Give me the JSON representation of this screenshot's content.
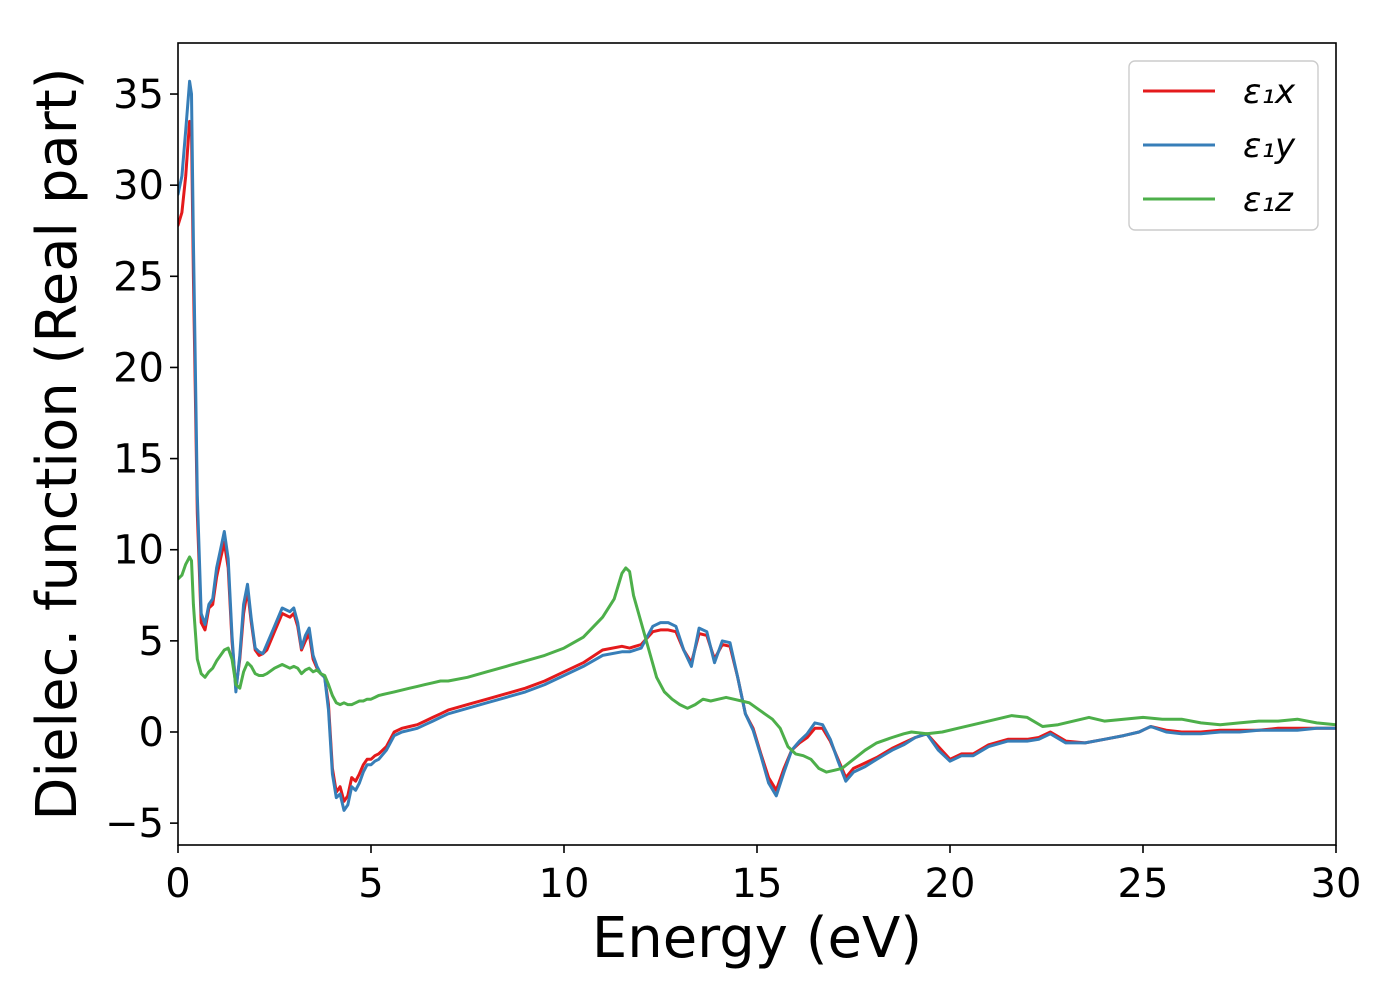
{
  "chart_data": {
    "type": "line",
    "title": "",
    "xlabel": "Energy (eV)",
    "ylabel": "Dielec. function (Real part)",
    "xlim": [
      0,
      30
    ],
    "ylim": [
      -6.2,
      37.8
    ],
    "xticks": [
      0,
      5,
      10,
      15,
      20,
      25,
      30
    ],
    "xtick_labels": [
      "0",
      "5",
      "10",
      "15",
      "20",
      "25",
      "30"
    ],
    "yticks": [
      -5,
      0,
      5,
      10,
      15,
      20,
      25,
      30,
      35
    ],
    "ytick_labels": [
      "−5",
      "0",
      "5",
      "10",
      "15",
      "20",
      "25",
      "30",
      "35"
    ],
    "grid": false,
    "legend_position": "top-right",
    "series": [
      {
        "name": "ε₁x",
        "color": "#e41a1c",
        "x": [
          0,
          0.1,
          0.2,
          0.3,
          0.35,
          0.4,
          0.5,
          0.6,
          0.7,
          0.8,
          0.9,
          1.0,
          1.1,
          1.2,
          1.3,
          1.4,
          1.5,
          1.6,
          1.7,
          1.8,
          1.9,
          2.0,
          2.1,
          2.2,
          2.3,
          2.5,
          2.7,
          2.9,
          3.0,
          3.1,
          3.2,
          3.3,
          3.4,
          3.5,
          3.6,
          3.7,
          3.8,
          3.9,
          4.0,
          4.1,
          4.2,
          4.3,
          4.4,
          4.5,
          4.6,
          4.7,
          4.8,
          4.9,
          5.0,
          5.1,
          5.2,
          5.4,
          5.6,
          5.8,
          6.0,
          6.2,
          6.4,
          6.6,
          6.8,
          7.0,
          7.5,
          8.0,
          8.5,
          9.0,
          9.5,
          10.0,
          10.5,
          11.0,
          11.5,
          11.7,
          12.0,
          12.3,
          12.5,
          12.7,
          12.9,
          13.1,
          13.3,
          13.5,
          13.7,
          13.9,
          14.1,
          14.3,
          14.5,
          14.7,
          14.9,
          15.1,
          15.3,
          15.5,
          15.7,
          15.9,
          16.1,
          16.3,
          16.5,
          16.7,
          16.9,
          17.1,
          17.3,
          17.5,
          17.8,
          18.1,
          18.5,
          18.8,
          19.1,
          19.4,
          19.7,
          20.0,
          20.3,
          20.6,
          21.0,
          21.5,
          22.0,
          22.3,
          22.6,
          23.0,
          23.5,
          24.0,
          24.5,
          24.9,
          25.2,
          25.6,
          26.0,
          26.5,
          27.0,
          27.5,
          28.0,
          28.5,
          29.0,
          29.5,
          30.0
        ],
        "y": [
          27.8,
          28.5,
          30.5,
          33.5,
          33.0,
          25.0,
          12.0,
          6.0,
          5.6,
          6.8,
          7.0,
          8.5,
          9.5,
          10.4,
          9.0,
          5.0,
          2.4,
          4.0,
          6.5,
          7.8,
          6.0,
          4.5,
          4.2,
          4.3,
          4.5,
          5.5,
          6.5,
          6.3,
          6.5,
          5.8,
          4.5,
          5.0,
          5.4,
          4.0,
          3.5,
          3.2,
          3.0,
          1.5,
          -2.0,
          -3.3,
          -3.0,
          -3.8,
          -3.5,
          -2.5,
          -2.7,
          -2.3,
          -1.8,
          -1.5,
          -1.5,
          -1.3,
          -1.2,
          -0.8,
          0.0,
          0.2,
          0.3,
          0.4,
          0.6,
          0.8,
          1.0,
          1.2,
          1.5,
          1.8,
          2.1,
          2.4,
          2.8,
          3.3,
          3.8,
          4.5,
          4.7,
          4.6,
          4.8,
          5.5,
          5.6,
          5.6,
          5.5,
          4.5,
          3.8,
          5.4,
          5.3,
          4.0,
          4.8,
          4.7,
          3.0,
          1.0,
          0.2,
          -1.2,
          -2.5,
          -3.2,
          -2.0,
          -1.0,
          -0.6,
          -0.3,
          0.2,
          0.2,
          -0.5,
          -1.5,
          -2.5,
          -2.0,
          -1.7,
          -1.4,
          -0.9,
          -0.6,
          -0.3,
          -0.1,
          -0.8,
          -1.5,
          -1.2,
          -1.2,
          -0.7,
          -0.4,
          -0.4,
          -0.3,
          0.0,
          -0.5,
          -0.6,
          -0.4,
          -0.2,
          0.0,
          0.3,
          0.1,
          0.0,
          0.0,
          0.1,
          0.1,
          0.1,
          0.2,
          0.2,
          0.2,
          0.2
        ]
      },
      {
        "name": "ε₁y",
        "color": "#377eb8",
        "x": [
          0,
          0.1,
          0.2,
          0.3,
          0.35,
          0.4,
          0.5,
          0.6,
          0.7,
          0.8,
          0.9,
          1.0,
          1.1,
          1.2,
          1.3,
          1.4,
          1.5,
          1.6,
          1.7,
          1.8,
          1.9,
          2.0,
          2.1,
          2.2,
          2.3,
          2.5,
          2.7,
          2.9,
          3.0,
          3.1,
          3.2,
          3.3,
          3.4,
          3.5,
          3.6,
          3.7,
          3.8,
          3.9,
          4.0,
          4.1,
          4.2,
          4.3,
          4.4,
          4.5,
          4.6,
          4.7,
          4.8,
          4.9,
          5.0,
          5.1,
          5.2,
          5.4,
          5.6,
          5.8,
          6.0,
          6.2,
          6.4,
          6.6,
          6.8,
          7.0,
          7.5,
          8.0,
          8.5,
          9.0,
          9.5,
          10.0,
          10.5,
          11.0,
          11.5,
          11.7,
          12.0,
          12.3,
          12.5,
          12.7,
          12.9,
          13.1,
          13.3,
          13.5,
          13.7,
          13.9,
          14.1,
          14.3,
          14.5,
          14.7,
          14.9,
          15.1,
          15.3,
          15.5,
          15.7,
          15.9,
          16.1,
          16.3,
          16.5,
          16.7,
          16.9,
          17.1,
          17.3,
          17.5,
          17.8,
          18.1,
          18.5,
          18.8,
          19.1,
          19.4,
          19.7,
          20.0,
          20.3,
          20.6,
          21.0,
          21.5,
          22.0,
          22.3,
          22.6,
          23.0,
          23.5,
          24.0,
          24.5,
          24.9,
          25.2,
          25.6,
          26.0,
          26.5,
          27.0,
          27.5,
          28.0,
          28.5,
          29.0,
          29.5,
          30.0
        ],
        "y": [
          29.5,
          30.5,
          33.0,
          35.7,
          35.0,
          27.0,
          13.0,
          6.5,
          5.9,
          7.0,
          7.3,
          9.0,
          10.0,
          11.0,
          9.5,
          5.3,
          2.2,
          4.2,
          7.0,
          8.1,
          6.2,
          4.6,
          4.4,
          4.3,
          4.8,
          5.8,
          6.8,
          6.6,
          6.8,
          6.0,
          4.6,
          5.3,
          5.7,
          4.2,
          3.6,
          3.2,
          3.0,
          1.2,
          -2.3,
          -3.6,
          -3.4,
          -4.3,
          -4.0,
          -3.0,
          -3.2,
          -2.8,
          -2.2,
          -1.8,
          -1.8,
          -1.6,
          -1.5,
          -1.0,
          -0.2,
          0.0,
          0.1,
          0.2,
          0.4,
          0.6,
          0.8,
          1.0,
          1.3,
          1.6,
          1.9,
          2.2,
          2.6,
          3.1,
          3.6,
          4.2,
          4.4,
          4.4,
          4.6,
          5.8,
          6.0,
          6.0,
          5.8,
          4.5,
          3.6,
          5.7,
          5.5,
          3.8,
          5.0,
          4.9,
          3.0,
          1.0,
          0.1,
          -1.3,
          -2.8,
          -3.5,
          -2.2,
          -1.0,
          -0.5,
          -0.1,
          0.5,
          0.4,
          -0.4,
          -1.6,
          -2.7,
          -2.2,
          -1.9,
          -1.5,
          -1.0,
          -0.7,
          -0.3,
          -0.1,
          -1.0,
          -1.6,
          -1.3,
          -1.3,
          -0.8,
          -0.5,
          -0.5,
          -0.4,
          -0.1,
          -0.6,
          -0.6,
          -0.4,
          -0.2,
          0.0,
          0.3,
          0.0,
          -0.1,
          -0.1,
          0.0,
          0.0,
          0.1,
          0.1,
          0.1,
          0.2,
          0.2
        ]
      },
      {
        "name": "ε₁z",
        "color": "#4daf4a",
        "x": [
          0,
          0.1,
          0.2,
          0.3,
          0.35,
          0.4,
          0.5,
          0.6,
          0.7,
          0.8,
          0.9,
          1.0,
          1.1,
          1.2,
          1.3,
          1.4,
          1.5,
          1.6,
          1.7,
          1.8,
          1.9,
          2.0,
          2.1,
          2.2,
          2.3,
          2.5,
          2.7,
          2.9,
          3.0,
          3.1,
          3.2,
          3.3,
          3.4,
          3.5,
          3.6,
          3.7,
          3.8,
          3.9,
          4.0,
          4.1,
          4.2,
          4.3,
          4.4,
          4.5,
          4.6,
          4.7,
          4.8,
          4.9,
          5.0,
          5.1,
          5.2,
          5.4,
          5.6,
          5.8,
          6.0,
          6.2,
          6.4,
          6.6,
          6.8,
          7.0,
          7.5,
          8.0,
          8.5,
          9.0,
          9.5,
          10.0,
          10.5,
          11.0,
          11.3,
          11.5,
          11.6,
          11.7,
          11.8,
          12.0,
          12.2,
          12.4,
          12.6,
          12.8,
          13.0,
          13.2,
          13.4,
          13.6,
          13.8,
          14.0,
          14.2,
          14.4,
          14.6,
          14.8,
          15.0,
          15.2,
          15.4,
          15.6,
          15.8,
          16.0,
          16.2,
          16.4,
          16.6,
          16.8,
          17.0,
          17.2,
          17.5,
          17.8,
          18.1,
          18.5,
          18.8,
          19.0,
          19.4,
          19.8,
          20.2,
          20.6,
          21.0,
          21.6,
          22.0,
          22.4,
          22.8,
          23.2,
          23.6,
          24.0,
          24.5,
          25.0,
          25.5,
          26.0,
          26.5,
          27.0,
          27.5,
          28.0,
          28.5,
          29.0,
          29.5,
          30.0
        ],
        "y": [
          8.4,
          8.6,
          9.2,
          9.6,
          9.4,
          7.0,
          4.0,
          3.2,
          3.0,
          3.3,
          3.5,
          3.9,
          4.2,
          4.5,
          4.6,
          4.0,
          2.6,
          2.4,
          3.3,
          3.8,
          3.6,
          3.2,
          3.1,
          3.1,
          3.2,
          3.5,
          3.7,
          3.5,
          3.6,
          3.5,
          3.2,
          3.4,
          3.5,
          3.3,
          3.4,
          3.2,
          3.1,
          2.6,
          2.0,
          1.6,
          1.5,
          1.6,
          1.5,
          1.5,
          1.6,
          1.7,
          1.7,
          1.8,
          1.8,
          1.9,
          2.0,
          2.1,
          2.2,
          2.3,
          2.4,
          2.5,
          2.6,
          2.7,
          2.8,
          2.8,
          3.0,
          3.3,
          3.6,
          3.9,
          4.2,
          4.6,
          5.2,
          6.3,
          7.3,
          8.7,
          9.0,
          8.8,
          7.5,
          6.0,
          4.5,
          3.0,
          2.2,
          1.8,
          1.5,
          1.3,
          1.5,
          1.8,
          1.7,
          1.8,
          1.9,
          1.8,
          1.7,
          1.6,
          1.3,
          1.0,
          0.7,
          0.2,
          -0.8,
          -1.2,
          -1.3,
          -1.5,
          -2.0,
          -2.2,
          -2.1,
          -2.0,
          -1.5,
          -1.0,
          -0.6,
          -0.3,
          -0.1,
          0.0,
          -0.1,
          0.0,
          0.2,
          0.4,
          0.6,
          0.9,
          0.8,
          0.3,
          0.4,
          0.6,
          0.8,
          0.6,
          0.7,
          0.8,
          0.7,
          0.7,
          0.5,
          0.4,
          0.5,
          0.6,
          0.6,
          0.7,
          0.5,
          0.4
        ]
      }
    ]
  }
}
